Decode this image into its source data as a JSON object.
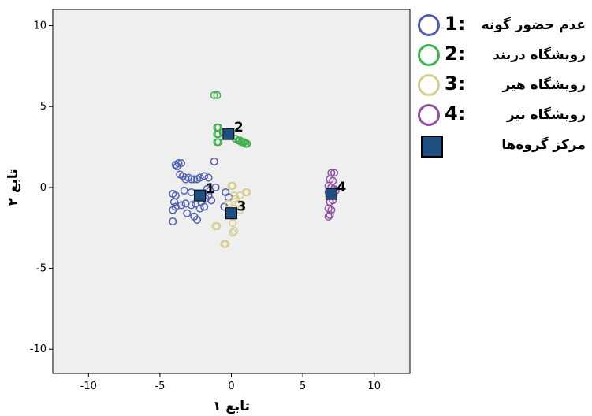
{
  "chart_data": {
    "type": "scatter",
    "xlabel": "تابع ۱",
    "ylabel": "تابع ۲",
    "xlim": [
      -12.5,
      12.5
    ],
    "ylim": [
      -11.5,
      11
    ],
    "xticks": [
      -10,
      -5,
      0,
      5,
      10
    ],
    "yticks": [
      -10,
      -5,
      0,
      5,
      10
    ],
    "grid": false,
    "legend_position": "right",
    "colors": {
      "plot_bg": "#efefef",
      "g1": "#5060b0",
      "g2": "#40b050",
      "g3": "#d8cc90",
      "g4": "#9050a8",
      "centroid": "#1f4f80"
    },
    "series": [
      {
        "name": "عدم حضور گونه",
        "color_key": "g1",
        "values": [
          [
            -3.9,
            1.4
          ],
          [
            -3.7,
            1.5
          ],
          [
            -3.5,
            1.5
          ],
          [
            -3.8,
            1.3
          ],
          [
            -3.6,
            0.8
          ],
          [
            -3.4,
            0.7
          ],
          [
            -3.2,
            0.5
          ],
          [
            -3.0,
            0.6
          ],
          [
            -2.8,
            0.5
          ],
          [
            -2.6,
            0.5
          ],
          [
            -2.4,
            0.5
          ],
          [
            -2.2,
            0.6
          ],
          [
            -1.9,
            0.7
          ],
          [
            -1.6,
            0.6
          ],
          [
            -1.2,
            1.6
          ],
          [
            -1.1,
            0.0
          ],
          [
            -1.5,
            -0.2
          ],
          [
            -1.6,
            -0.5
          ],
          [
            -1.8,
            -0.7
          ],
          [
            -2.1,
            -0.9
          ],
          [
            -2.5,
            -1.0
          ],
          [
            -2.8,
            -1.1
          ],
          [
            -3.2,
            -1.0
          ],
          [
            -3.5,
            -1.1
          ],
          [
            -3.9,
            -1.2
          ],
          [
            -4.1,
            -1.4
          ],
          [
            -4.0,
            -0.9
          ],
          [
            -4.1,
            -0.4
          ],
          [
            -3.9,
            -0.5
          ],
          [
            -3.1,
            -1.6
          ],
          [
            -2.6,
            -1.8
          ],
          [
            -2.2,
            -1.3
          ],
          [
            -1.9,
            -1.2
          ],
          [
            -1.4,
            -0.8
          ],
          [
            -0.4,
            -0.3
          ],
          [
            -0.2,
            -0.6
          ],
          [
            -0.5,
            -1.2
          ],
          [
            -2.4,
            -2.0
          ],
          [
            -4.1,
            -2.1
          ],
          [
            -1.7,
            -0.1
          ],
          [
            -2.0,
            -0.4
          ],
          [
            -2.8,
            -0.3
          ],
          [
            -3.3,
            -0.2
          ]
        ]
      },
      {
        "name": "رویشگاه دربند",
        "color_key": "g2",
        "values": [
          [
            -1.2,
            5.7
          ],
          [
            -1.0,
            5.7
          ],
          [
            -1.0,
            3.7
          ],
          [
            -0.9,
            3.7
          ],
          [
            -1.0,
            3.3
          ],
          [
            -0.9,
            3.3
          ],
          [
            -1.0,
            2.8
          ],
          [
            -0.9,
            2.8
          ],
          [
            0.3,
            3.0
          ],
          [
            0.5,
            2.9
          ],
          [
            0.6,
            2.9
          ],
          [
            0.7,
            2.8
          ],
          [
            0.8,
            2.8
          ],
          [
            0.9,
            2.8
          ],
          [
            1.0,
            2.7
          ],
          [
            1.1,
            2.7
          ],
          [
            -0.6,
            3.4
          ]
        ]
      },
      {
        "name": "رویشگاه هیر",
        "color_key": "g3",
        "values": [
          [
            0.0,
            0.1
          ],
          [
            0.1,
            0.1
          ],
          [
            0.2,
            -0.5
          ],
          [
            0.3,
            -0.7
          ],
          [
            0.6,
            -0.5
          ],
          [
            1.0,
            -0.3
          ],
          [
            1.1,
            -0.3
          ],
          [
            0.5,
            -1.0
          ],
          [
            0.2,
            -1.3
          ],
          [
            0.1,
            -1.8
          ],
          [
            0.1,
            -2.2
          ],
          [
            0.2,
            -2.7
          ],
          [
            0.1,
            -2.8
          ],
          [
            -1.1,
            -2.4
          ],
          [
            -1.0,
            -2.4
          ],
          [
            -0.5,
            -3.5
          ],
          [
            -0.4,
            -3.5
          ],
          [
            0.6,
            -1.4
          ],
          [
            -0.2,
            -1.0
          ]
        ]
      },
      {
        "name": "رویشگاه نیر",
        "color_key": "g4",
        "values": [
          [
            7.0,
            0.9
          ],
          [
            7.2,
            0.9
          ],
          [
            6.9,
            0.5
          ],
          [
            7.1,
            0.4
          ],
          [
            6.8,
            0.1
          ],
          [
            7.0,
            0.0
          ],
          [
            7.2,
            -0.1
          ],
          [
            6.8,
            -0.3
          ],
          [
            7.0,
            -0.5
          ],
          [
            7.1,
            -0.8
          ],
          [
            6.9,
            -0.9
          ],
          [
            6.8,
            -1.3
          ],
          [
            7.0,
            -1.4
          ],
          [
            6.9,
            -1.7
          ],
          [
            6.8,
            -1.8
          ],
          [
            7.3,
            -0.2
          ]
        ]
      }
    ],
    "centroids": [
      {
        "label": "1",
        "x": -2.2,
        "y": -0.5
      },
      {
        "label": "2",
        "x": -0.2,
        "y": 3.3
      },
      {
        "label": "3",
        "x": 0.0,
        "y": -1.6
      },
      {
        "label": "4",
        "x": 7.0,
        "y": -0.4
      }
    ],
    "legend": [
      {
        "number": "1:",
        "label": "عدم حضور گونه",
        "color_key": "g1"
      },
      {
        "number": "2:",
        "label": "رویشگاه دربند",
        "color_key": "g2"
      },
      {
        "number": "3:",
        "label": "رویشگاه هیر",
        "color_key": "g3"
      },
      {
        "number": "4:",
        "label": "رویشگاه نیر",
        "color_key": "g4"
      },
      {
        "number": "",
        "label": "مرکز گروه‌ها",
        "color_key": "centroid",
        "shape": "square"
      }
    ]
  }
}
